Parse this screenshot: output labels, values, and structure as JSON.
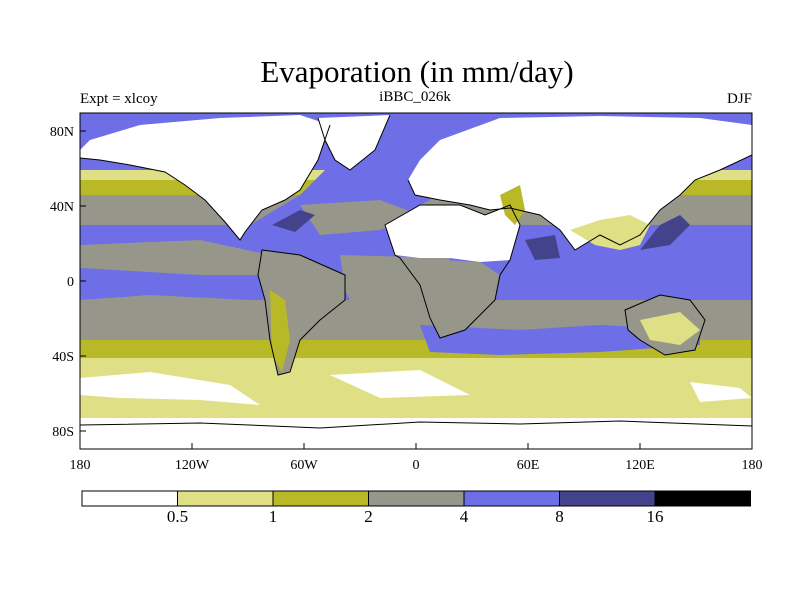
{
  "title": "Evaporation (in mm/day)",
  "subtitle_left": "Expt = xlcoy",
  "subtitle_center": "iBBC_026k",
  "subtitle_right": "DJF",
  "map": {
    "lat_ticks": [
      "80N",
      "40N",
      "0",
      "40S",
      "80S"
    ],
    "lon_ticks": [
      "180",
      "120W",
      "60W",
      "0",
      "60E",
      "120E",
      "180"
    ]
  },
  "colorbar": {
    "labels": [
      "0.5",
      "1",
      "2",
      "4",
      "8",
      "16"
    ],
    "colors": [
      "#ffffff",
      "#dfdf85",
      "#b9b928",
      "#96968a",
      "#6e6ee6",
      "#43438c",
      "#000000"
    ]
  },
  "chart_data": {
    "type": "heatmap",
    "title": "Evaporation (in mm/day)",
    "experiment": "Expt = xlcoy",
    "run": "iBBC_026k",
    "season": "DJF",
    "x_ticks": [
      "180",
      "120W",
      "60W",
      "0",
      "60E",
      "120E",
      "180"
    ],
    "y_ticks": [
      "80N",
      "40N",
      "0",
      "40S",
      "80S"
    ],
    "xlim": [
      -180,
      180
    ],
    "ylim": [
      -90,
      90
    ],
    "levels": [
      0.5,
      1,
      2,
      4,
      8,
      16
    ],
    "units": "mm/day"
  }
}
